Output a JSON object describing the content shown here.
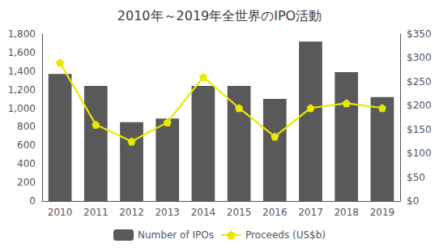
{
  "chart_data": {
    "type": "bar",
    "title": "2010年～2019年全世界のIPO活動",
    "categories": [
      "2010",
      "2011",
      "2012",
      "2013",
      "2014",
      "2015",
      "2016",
      "2017",
      "2018",
      "2019"
    ],
    "series": [
      {
        "name": "Number of IPOs",
        "type": "bar",
        "color": "#595959",
        "values": [
          1370,
          1240,
          850,
          890,
          1240,
          1240,
          1100,
          1720,
          1390,
          1120
        ]
      },
      {
        "name": "Proceeds (US$b)",
        "type": "line",
        "axis": "y2",
        "color": "#e8e800",
        "marker": "pentagon",
        "values": [
          290,
          160,
          125,
          165,
          260,
          195,
          135,
          195,
          205,
          195
        ]
      }
    ],
    "ylim": [
      0,
      1800
    ],
    "yticks": [
      0,
      200,
      400,
      600,
      800,
      {
        "value": 1000,
        "label": "1,000"
      },
      {
        "value": 1200,
        "label": "1,200"
      },
      {
        "value": 1400,
        "label": "1,400"
      },
      {
        "value": 1600,
        "label": "1,600"
      },
      {
        "value": 1800,
        "label": "1,800"
      }
    ],
    "y2lim": [
      0,
      350
    ],
    "y2ticks": [
      {
        "value": 0,
        "label": "$0"
      },
      {
        "value": 50,
        "label": "$50"
      },
      {
        "value": 100,
        "label": "$100"
      },
      {
        "value": 150,
        "label": "$150"
      },
      {
        "value": 200,
        "label": "$200"
      },
      {
        "value": 250,
        "label": "$250"
      },
      {
        "value": 300,
        "label": "$300"
      },
      {
        "value": 350,
        "label": "$350"
      }
    ],
    "grid": false,
    "legend": "bottom"
  }
}
